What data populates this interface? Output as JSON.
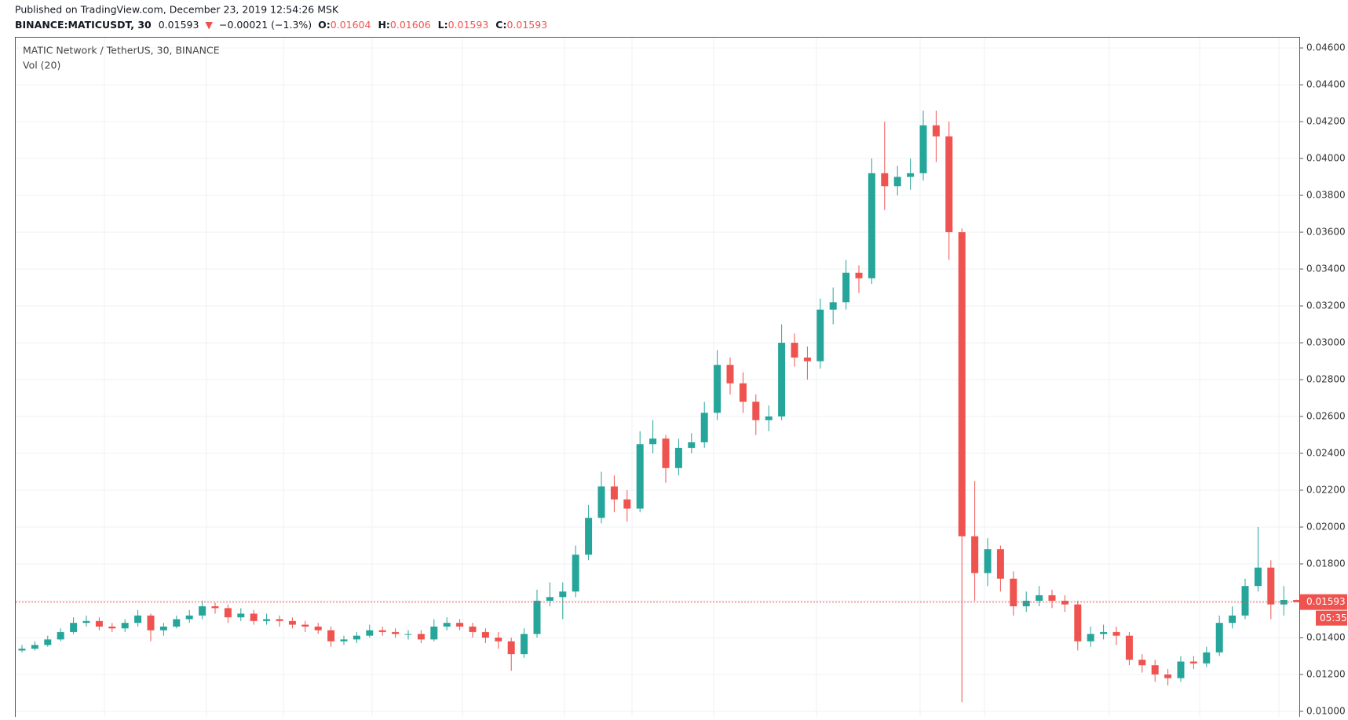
{
  "header": {
    "published": "Published on TradingView.com, December 23, 2019 12:54:26 MSK",
    "symbol": "BINANCE:MATICUSDT, 30",
    "price": "0.01593",
    "arrow": "▼",
    "change": "−0.00021 (−1.3%)",
    "ohlc": [
      {
        "label": "O:",
        "value": "0.01604"
      },
      {
        "label": "H:",
        "value": "0.01606"
      },
      {
        "label": "L:",
        "value": "0.01593"
      },
      {
        "label": "C:",
        "value": "0.01593"
      }
    ]
  },
  "chart_data": {
    "type": "candlestick",
    "title": "MATIC Network / TetherUS, 30, BINANCE",
    "indicator": "Vol (20)",
    "countdown": "05:35",
    "up_color": "#26a69a",
    "down_color": "#ef5350",
    "grid": true,
    "ylim": [
      0.0097,
      0.0466
    ],
    "yticks": [
      {
        "value": 0.01,
        "label": "0.01000"
      },
      {
        "value": 0.012,
        "label": "0.01200"
      },
      {
        "value": 0.014,
        "label": "0.01400"
      },
      {
        "value": 0.016,
        "label": "0.01600"
      },
      {
        "value": 0.018,
        "label": "0.01800"
      },
      {
        "value": 0.02,
        "label": "0.02000"
      },
      {
        "value": 0.022,
        "label": "0.02200"
      },
      {
        "value": 0.024,
        "label": "0.02400"
      },
      {
        "value": 0.026,
        "label": "0.02600"
      },
      {
        "value": 0.028,
        "label": "0.02800"
      },
      {
        "value": 0.03,
        "label": "0.03000"
      },
      {
        "value": 0.032,
        "label": "0.03200"
      },
      {
        "value": 0.034,
        "label": "0.03400"
      },
      {
        "value": 0.036,
        "label": "0.03600"
      },
      {
        "value": 0.038,
        "label": "0.03800"
      },
      {
        "value": 0.04,
        "label": "0.04000"
      },
      {
        "value": 0.042,
        "label": "0.04200"
      },
      {
        "value": 0.044,
        "label": "0.04400"
      },
      {
        "value": 0.046,
        "label": "0.04600"
      }
    ],
    "open": [
      0.0133,
      0.0134,
      0.0136,
      0.0139,
      0.0143,
      0.0148,
      0.0149,
      0.0146,
      0.0145,
      0.0148,
      0.0152,
      0.0144,
      0.0146,
      0.015,
      0.0152,
      0.0157,
      0.0156,
      0.0151,
      0.0153,
      0.0149,
      0.015,
      0.0149,
      0.0147,
      0.0146,
      0.0144,
      0.0138,
      0.0139,
      0.0141,
      0.0144,
      0.0143,
      0.0142,
      0.0142,
      0.0139,
      0.0146,
      0.0148,
      0.0146,
      0.0143,
      0.014,
      0.0138,
      0.0131,
      0.0142,
      0.016,
      0.0162,
      0.0165,
      0.0185,
      0.0205,
      0.0222,
      0.0215,
      0.021,
      0.0245,
      0.0248,
      0.0232,
      0.0243,
      0.0246,
      0.0262,
      0.0288,
      0.0278,
      0.0268,
      0.0258,
      0.026,
      0.03,
      0.0292,
      0.029,
      0.0318,
      0.0322,
      0.0338,
      0.0335,
      0.0392,
      0.0385,
      0.039,
      0.0392,
      0.0418,
      0.0412,
      0.036,
      0.0195,
      0.0175,
      0.0188,
      0.0172,
      0.0157,
      0.016,
      0.0163,
      0.016,
      0.0158,
      0.0138,
      0.0142,
      0.0143,
      0.0141,
      0.0128,
      0.0125,
      0.012,
      0.0118,
      0.0127,
      0.0126,
      0.0132,
      0.0148,
      0.0152,
      0.0168,
      0.0178,
      0.0158,
      0.01604
    ],
    "high": [
      0.0136,
      0.0138,
      0.0141,
      0.0145,
      0.0151,
      0.0152,
      0.0151,
      0.0148,
      0.015,
      0.0155,
      0.0153,
      0.0148,
      0.0152,
      0.0155,
      0.016,
      0.0159,
      0.0158,
      0.0156,
      0.0155,
      0.0153,
      0.0152,
      0.0151,
      0.0149,
      0.0148,
      0.0146,
      0.0141,
      0.0143,
      0.0147,
      0.0146,
      0.0145,
      0.0144,
      0.0144,
      0.015,
      0.0151,
      0.015,
      0.0148,
      0.0145,
      0.0143,
      0.014,
      0.0145,
      0.0166,
      0.017,
      0.017,
      0.019,
      0.0212,
      0.023,
      0.0228,
      0.022,
      0.0252,
      0.0258,
      0.025,
      0.0248,
      0.0251,
      0.0268,
      0.0296,
      0.0292,
      0.0284,
      0.0272,
      0.0266,
      0.031,
      0.0305,
      0.0298,
      0.0324,
      0.033,
      0.0345,
      0.0342,
      0.04,
      0.042,
      0.0396,
      0.04,
      0.0426,
      0.0426,
      0.042,
      0.0362,
      0.0225,
      0.0194,
      0.019,
      0.0176,
      0.0165,
      0.0168,
      0.0166,
      0.0163,
      0.016,
      0.0146,
      0.0147,
      0.0146,
      0.0143,
      0.0131,
      0.0128,
      0.0123,
      0.013,
      0.013,
      0.0135,
      0.0152,
      0.0157,
      0.0172,
      0.02,
      0.0182,
      0.0168,
      0.01606
    ],
    "low": [
      0.0132,
      0.0133,
      0.0135,
      0.0138,
      0.0142,
      0.0146,
      0.0144,
      0.0143,
      0.0143,
      0.0146,
      0.0138,
      0.0141,
      0.0145,
      0.0148,
      0.015,
      0.0153,
      0.0148,
      0.0149,
      0.0147,
      0.0147,
      0.0146,
      0.0145,
      0.0143,
      0.0142,
      0.0135,
      0.0136,
      0.0137,
      0.014,
      0.0141,
      0.014,
      0.0139,
      0.0137,
      0.0138,
      0.0144,
      0.0144,
      0.014,
      0.0137,
      0.0134,
      0.0122,
      0.0129,
      0.014,
      0.0157,
      0.015,
      0.0162,
      0.0182,
      0.0202,
      0.0208,
      0.0203,
      0.0208,
      0.024,
      0.0224,
      0.0228,
      0.024,
      0.0243,
      0.0258,
      0.0272,
      0.0262,
      0.025,
      0.0252,
      0.0258,
      0.0287,
      0.028,
      0.0286,
      0.031,
      0.0318,
      0.0327,
      0.0332,
      0.0372,
      0.038,
      0.0383,
      0.0388,
      0.0398,
      0.0345,
      0.0105,
      0.016,
      0.0168,
      0.0165,
      0.0152,
      0.0154,
      0.0157,
      0.0156,
      0.0154,
      0.0133,
      0.0135,
      0.0139,
      0.0136,
      0.0125,
      0.0121,
      0.0116,
      0.0114,
      0.0116,
      0.0123,
      0.0124,
      0.013,
      0.0145,
      0.015,
      0.0165,
      0.015,
      0.0152,
      0.01593
    ],
    "close": [
      0.0134,
      0.0136,
      0.0139,
      0.0143,
      0.0148,
      0.0149,
      0.0146,
      0.0145,
      0.0148,
      0.0152,
      0.0144,
      0.0146,
      0.015,
      0.0152,
      0.0157,
      0.0156,
      0.0151,
      0.0153,
      0.0149,
      0.015,
      0.0149,
      0.0147,
      0.0146,
      0.0144,
      0.0138,
      0.0139,
      0.0141,
      0.0144,
      0.0143,
      0.0142,
      0.0142,
      0.0139,
      0.0146,
      0.0148,
      0.0146,
      0.0143,
      0.014,
      0.0138,
      0.0131,
      0.0142,
      0.016,
      0.0162,
      0.0165,
      0.0185,
      0.0205,
      0.0222,
      0.0215,
      0.021,
      0.0245,
      0.0248,
      0.0232,
      0.0243,
      0.0246,
      0.0262,
      0.0288,
      0.0278,
      0.0268,
      0.0258,
      0.026,
      0.03,
      0.0292,
      0.029,
      0.0318,
      0.0322,
      0.0338,
      0.0335,
      0.0392,
      0.0385,
      0.039,
      0.0392,
      0.0418,
      0.0412,
      0.036,
      0.0195,
      0.0175,
      0.0188,
      0.0172,
      0.0157,
      0.016,
      0.0163,
      0.016,
      0.0158,
      0.0138,
      0.0142,
      0.0143,
      0.0141,
      0.0128,
      0.0125,
      0.012,
      0.0118,
      0.0127,
      0.0126,
      0.0132,
      0.0148,
      0.0152,
      0.0168,
      0.0178,
      0.0158,
      0.01604,
      0.01593
    ]
  }
}
